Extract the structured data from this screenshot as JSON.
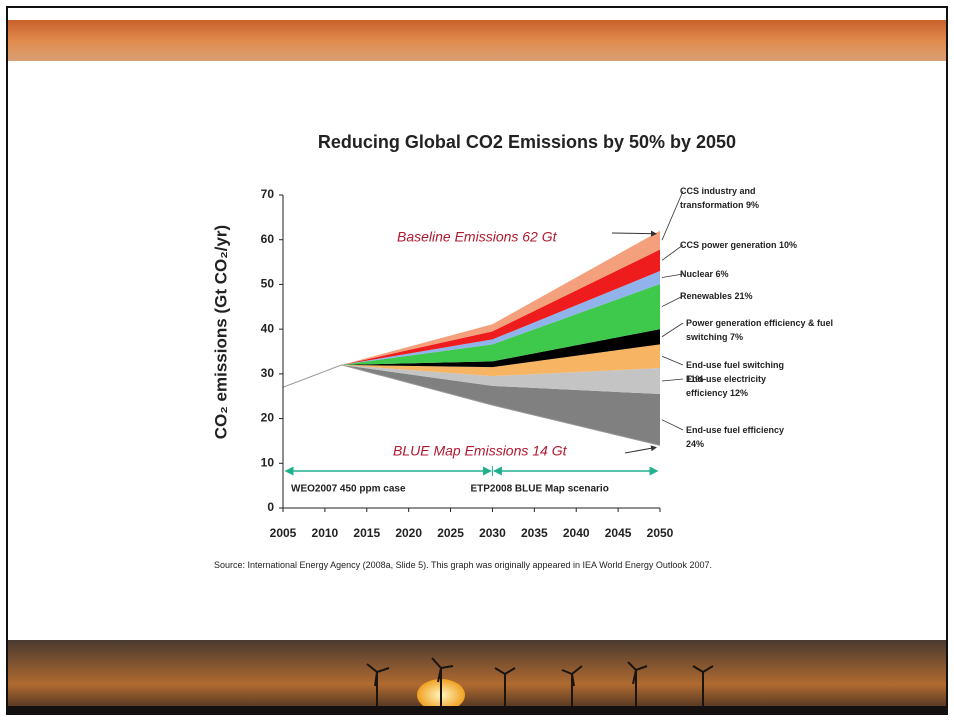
{
  "chart_data": {
    "type": "stacked-area",
    "title": "Reducing Global CO2 Emissions by 50% by 2050",
    "y_label": "CO₂ emissions (Gt CO₂/yr)",
    "x": [
      2005,
      2012,
      2030,
      2050
    ],
    "xlim": [
      2005,
      2050
    ],
    "xticks": [
      2005,
      2010,
      2015,
      2020,
      2025,
      2030,
      2035,
      2040,
      2045,
      2050
    ],
    "ylim": [
      0,
      70
    ],
    "yticks": [
      0,
      10,
      20,
      30,
      40,
      50,
      60,
      70
    ],
    "base": {
      "name": "BLUE Map Emissions 14 Gt",
      "values": [
        27,
        32,
        23,
        14
      ]
    },
    "series": [
      {
        "name": "End-use fuel efficiency 24%",
        "color": "#808080",
        "values": [
          0,
          0,
          4.3,
          11.5
        ]
      },
      {
        "name": "End-use electricity efficiency 12%",
        "color": "#c4c4c4",
        "values": [
          0,
          0,
          2.2,
          5.8
        ]
      },
      {
        "name": "End-use fuel switching 11%",
        "color": "#f7b564",
        "values": [
          0,
          0,
          2,
          5.3
        ]
      },
      {
        "name": "Power generation efficiency & fuel switching 7%",
        "color": "#000000",
        "values": [
          0,
          0,
          1.3,
          3.4
        ]
      },
      {
        "name": "Renewables 21%",
        "color": "#3ec84c",
        "values": [
          0,
          0,
          3.8,
          10.1
        ]
      },
      {
        "name": "Nuclear 6%",
        "color": "#8fb3ea",
        "values": [
          0,
          0,
          1.1,
          2.9
        ]
      },
      {
        "name": "CCS power generation 10%",
        "color": "#ee1c1c",
        "values": [
          0,
          0,
          1.8,
          4.8
        ]
      },
      {
        "name": "CCS industry and transformation 9%",
        "color": "#f4a07c",
        "values": [
          0,
          0,
          1.6,
          4.2
        ]
      }
    ],
    "baseline_label": "Baseline Emissions 62 Gt",
    "scenario_split": 2030,
    "scenario_labels": [
      "WEO2007 450 ppm case",
      "ETP2008 BLUE Map scenario"
    ],
    "source": "Source: International Energy Agency (2008a, Slide 5). This graph was originally appeared in IEA World Energy Outlook 2007."
  }
}
